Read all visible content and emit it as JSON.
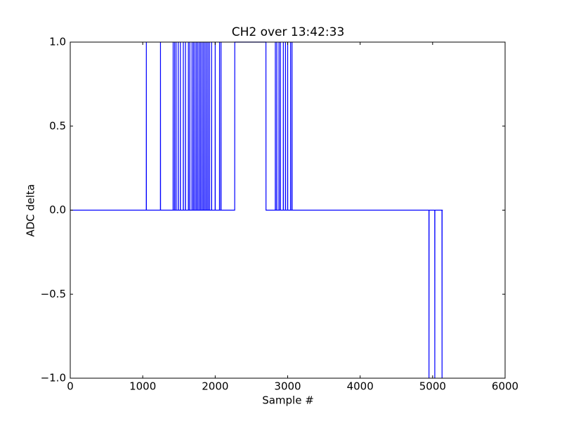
{
  "chart_data": {
    "type": "line",
    "title": "CH2 over 13:42:33",
    "xlabel": "Sample #",
    "ylabel": "ADC delta",
    "color": "#0000ff",
    "x": [
      0,
      1049,
      1050,
      1051,
      1244,
      1245,
      1246,
      1419,
      1420,
      1421,
      1439,
      1440,
      1441,
      1459,
      1460,
      1461,
      1489,
      1490,
      1491,
      1519,
      1520,
      1521,
      1559,
      1560,
      1561,
      1589,
      1590,
      1591,
      1629,
      1630,
      1631,
      1649,
      1650,
      1651,
      1679,
      1680,
      1681,
      1699,
      1700,
      1701,
      1719,
      1720,
      1721,
      1739,
      1740,
      1741,
      1759,
      1760,
      1761,
      1779,
      1780,
      1781,
      1799,
      1800,
      1801,
      1819,
      1820,
      1821,
      1839,
      1840,
      1841,
      1859,
      1860,
      1861,
      1879,
      1880,
      1881,
      1899,
      1900,
      1901,
      1919,
      1920,
      1921,
      1949,
      1950,
      1951,
      1999,
      2000,
      2001,
      2059,
      2060,
      2061,
      2079,
      2080,
      2081,
      2269,
      2270,
      2700,
      2701,
      2829,
      2830,
      2831,
      2849,
      2850,
      2851,
      2879,
      2880,
      2881,
      2899,
      2900,
      2901,
      2939,
      2940,
      2941,
      2969,
      2970,
      2971,
      2999,
      3000,
      3001,
      3039,
      3040,
      3041,
      3059,
      3060,
      3061,
      4949,
      4950,
      4951,
      5029,
      5030,
      5031,
      5129,
      5130,
      5131,
      5140
    ],
    "values": [
      0,
      0,
      1,
      0,
      0,
      1,
      0,
      0,
      1,
      0,
      0,
      1,
      0,
      0,
      1,
      0,
      0,
      1,
      0,
      0,
      1,
      0,
      0,
      1,
      0,
      0,
      1,
      0,
      0,
      1,
      0,
      0,
      1,
      0,
      0,
      1,
      0,
      0,
      1,
      0,
      0,
      1,
      0,
      0,
      1,
      0,
      0,
      1,
      0,
      0,
      1,
      0,
      0,
      1,
      0,
      0,
      1,
      0,
      0,
      1,
      0,
      0,
      1,
      0,
      0,
      1,
      0,
      0,
      1,
      0,
      0,
      1,
      0,
      0,
      1,
      0,
      0,
      1,
      0,
      0,
      1,
      0,
      0,
      1,
      0,
      0,
      1,
      1,
      0,
      0,
      1,
      0,
      0,
      1,
      0,
      0,
      1,
      0,
      0,
      1,
      0,
      0,
      1,
      0,
      0,
      1,
      0,
      0,
      1,
      0,
      0,
      1,
      0,
      0,
      1,
      0,
      0,
      -1,
      0,
      0,
      -1,
      0,
      0,
      -1,
      0,
      0
    ],
    "xlim": [
      0,
      6000
    ],
    "xticks": [
      0,
      1000,
      2000,
      3000,
      4000,
      5000,
      6000
    ],
    "ylim": [
      -1,
      1
    ],
    "yticks": [
      {
        "value": -1,
        "label": "−1.0"
      },
      {
        "value": -0.5,
        "label": "−0.5"
      },
      {
        "value": 0,
        "label": "0.0"
      },
      0.5,
      {
        "value": 1,
        "label": "1.0"
      }
    ]
  }
}
